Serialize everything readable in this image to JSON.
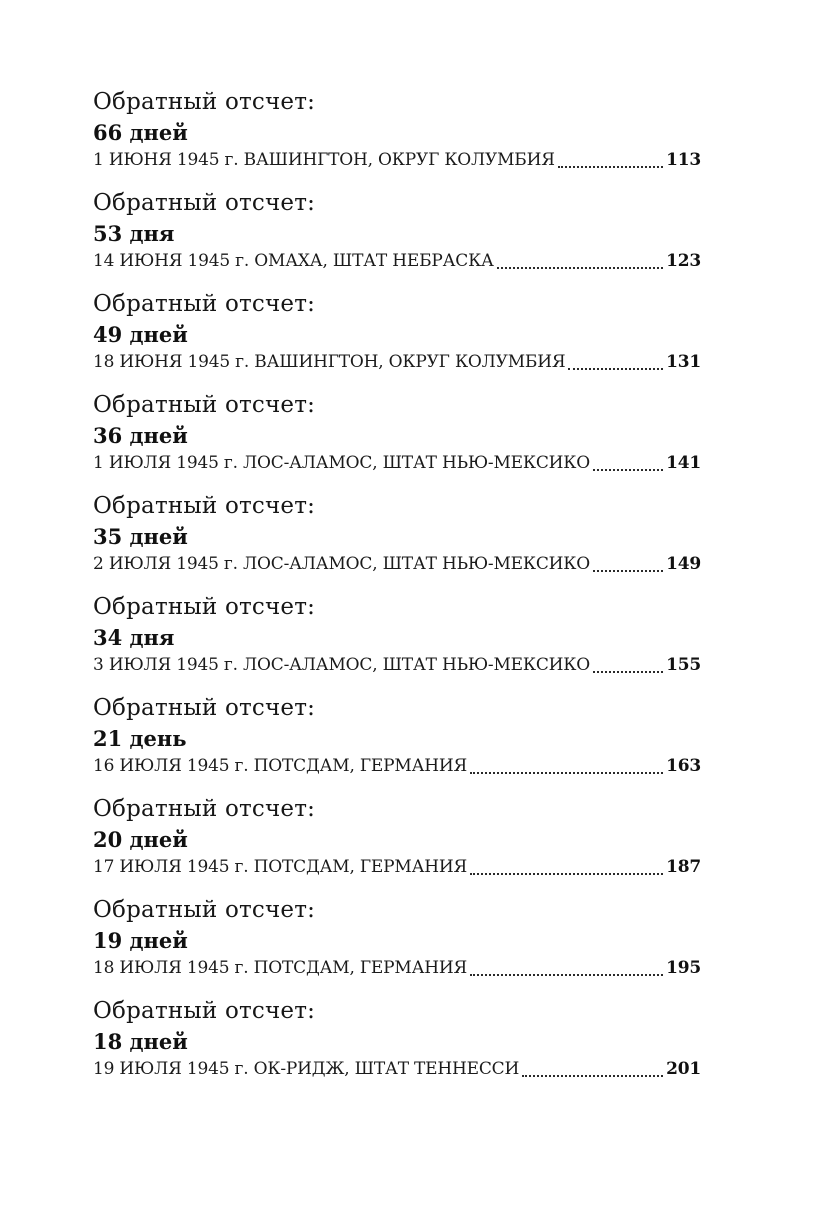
{
  "colors": {
    "background": "#ffffff",
    "text": "#161616"
  },
  "toc": {
    "entries": [
      {
        "heading": "Обратный отсчет:",
        "days": "66 дней",
        "title": "1 ИЮНЯ 1945 г. ВАШИНГТОН, ОКРУГ КОЛУМБИЯ",
        "page": "113"
      },
      {
        "heading": "Обратный отсчет:",
        "days": "53 дня",
        "title": "14 ИЮНЯ 1945 г. ОМАХА, ШТАТ НЕБРАСКА",
        "page": "123"
      },
      {
        "heading": "Обратный отсчет:",
        "days": "49 дней",
        "title": "18 ИЮНЯ 1945 г. ВАШИНГТОН, ОКРУГ КОЛУМБИЯ",
        "page": "131"
      },
      {
        "heading": "Обратный отсчет:",
        "days": "36 дней",
        "title": "1 ИЮЛЯ 1945 г. ЛОС-АЛАМОС, ШТАТ НЬЮ-МЕКСИКО",
        "page": "141"
      },
      {
        "heading": "Обратный отсчет:",
        "days": "35 дней",
        "title": "2 ИЮЛЯ 1945 г. ЛОС-АЛАМОС, ШТАТ НЬЮ-МЕКСИКО",
        "page": "149"
      },
      {
        "heading": "Обратный отсчет:",
        "days": "34 дня",
        "title": "3 ИЮЛЯ 1945 г. ЛОС-АЛАМОС, ШТАТ НЬЮ-МЕКСИКО",
        "page": "155"
      },
      {
        "heading": "Обратный отсчет:",
        "days": "21 день",
        "title": "16 ИЮЛЯ 1945 г. ПОТСДАМ, ГЕРМАНИЯ",
        "page": "163"
      },
      {
        "heading": "Обратный отсчет:",
        "days": "20 дней",
        "title": "17 ИЮЛЯ 1945 г. ПОТСДАМ, ГЕРМАНИЯ",
        "page": "187"
      },
      {
        "heading": "Обратный отсчет:",
        "days": "19 дней",
        "title": "18 ИЮЛЯ 1945 г. ПОТСДАМ, ГЕРМАНИЯ",
        "page": "195"
      },
      {
        "heading": "Обратный отсчет:",
        "days": "18 дней",
        "title": "19 ИЮЛЯ 1945 г. ОК-РИДЖ, ШТАТ ТЕННЕССИ",
        "page": "201"
      }
    ]
  }
}
